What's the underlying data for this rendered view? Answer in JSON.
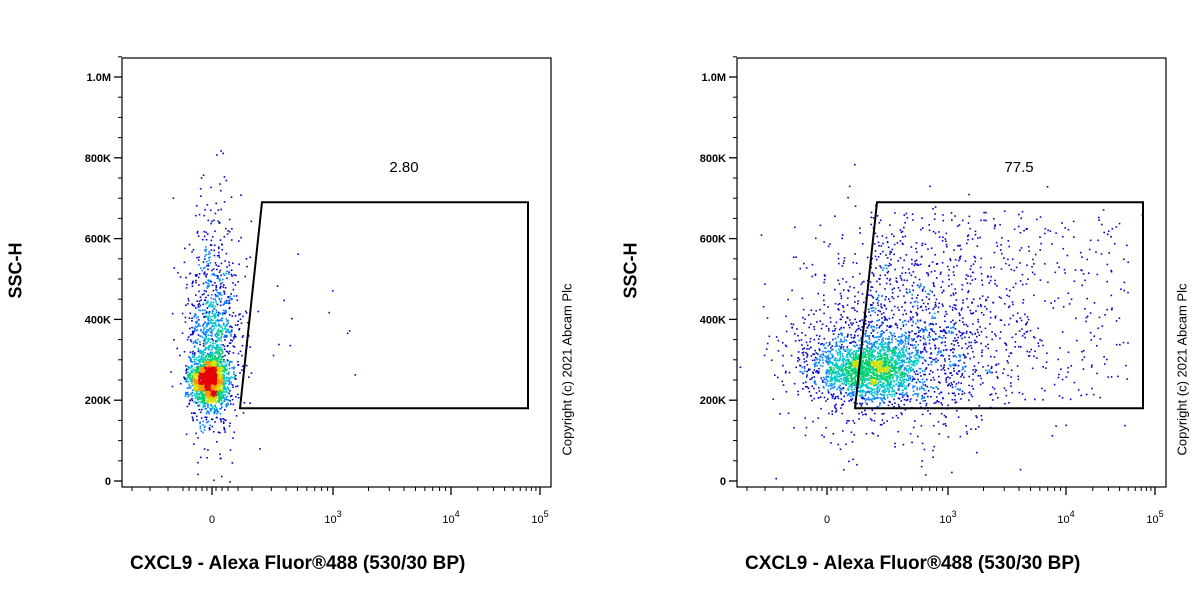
{
  "chart_data": [
    {
      "type": "scatter",
      "subtype": "flow-cytometry-density-dot-plot",
      "xlabel": "CXCL9 - Alexa Fluor®488 (530/30 BP)",
      "ylabel": "SSC-H",
      "x_scale": "biexponential",
      "x_ticks": [
        "0",
        "10^3",
        "10^4",
        "10^5"
      ],
      "y_ticks": [
        "0",
        "200K",
        "400K",
        "600K",
        "800K",
        "1.0M"
      ],
      "ylim": [
        0,
        1050000
      ],
      "gate": {
        "shape": "polygon",
        "label": "2.80",
        "value": 2.8
      },
      "population": {
        "x_center": "0",
        "y_center": 240000,
        "spread": "tight, mostly left of gate"
      },
      "copyright": "Copyright (c) 2021 Abcam Plc"
    },
    {
      "type": "scatter",
      "subtype": "flow-cytometry-density-dot-plot",
      "xlabel": "CXCL9 - Alexa Fluor®488 (530/30 BP)",
      "ylabel": "SSC-H",
      "x_scale": "biexponential",
      "x_ticks": [
        "0",
        "10^3",
        "10^4",
        "10^5"
      ],
      "y_ticks": [
        "0",
        "200K",
        "400K",
        "600K",
        "800K",
        "1.0M"
      ],
      "ylim": [
        0,
        1050000
      ],
      "gate": {
        "shape": "polygon",
        "label": "77.5",
        "value": 77.5
      },
      "population": {
        "x_center": "between 0 and 10^3",
        "y_center": 270000,
        "spread": "broad, mostly inside gate"
      },
      "copyright": "Copyright (c) 2021 Abcam Plc"
    }
  ],
  "colors": {
    "density_low": "#0000cc",
    "density_mid": "#00c8c8",
    "density_high": "#e60000",
    "gate": "#000000"
  }
}
